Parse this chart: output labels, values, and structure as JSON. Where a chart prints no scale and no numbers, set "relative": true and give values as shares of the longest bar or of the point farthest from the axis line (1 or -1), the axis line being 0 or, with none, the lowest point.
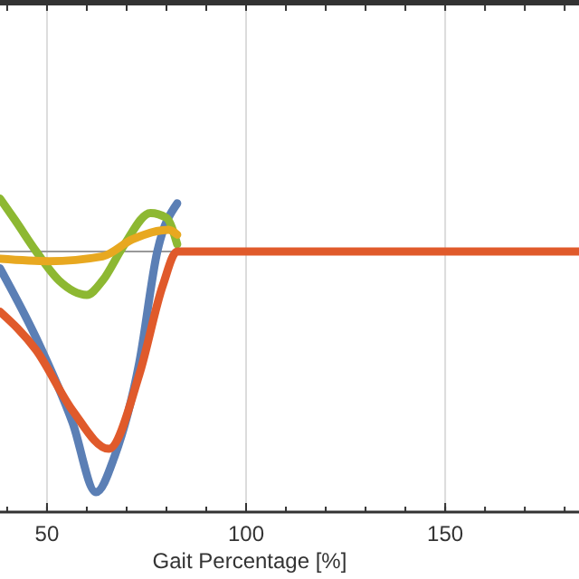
{
  "chart_data": {
    "type": "line",
    "xlabel": "Gait Percentage [%]",
    "relative": true,
    "xlim": [
      38.2,
      183.6
    ],
    "xticks": [
      50,
      100,
      150
    ],
    "grid": "x",
    "line_style": "solid",
    "series": [
      {
        "color": "#5b7fb5",
        "x": [
          38.2,
          47.3,
          56.4,
          62.3,
          67,
          73.2,
          77.7,
          82.7
        ],
        "values": [
          -0.07,
          -0.36,
          -0.71,
          -1,
          -0.85,
          -0.46,
          0,
          0.2
        ]
      },
      {
        "color": "#8db832",
        "x": [
          38.2,
          42,
          47.3,
          53,
          60,
          64,
          69.1,
          76,
          80,
          82.7
        ],
        "values": [
          0.22,
          0.13,
          0,
          -0.12,
          -0.18,
          -0.12,
          0.02,
          0.16,
          0.14,
          0.03
        ]
      },
      {
        "color": "#e8a820",
        "x": [
          38.2,
          50.5,
          64,
          71.4,
          80.5,
          82.7
        ],
        "values": [
          -0.03,
          -0.04,
          -0.02,
          0.05,
          0.09,
          0.07
        ]
      },
      {
        "color": "#e05a2b",
        "x": [
          38.2,
          47.3,
          56.4,
          65.5,
          73.2,
          79.1,
          82.7,
          100,
          150,
          183.6
        ],
        "values": [
          -0.25,
          -0.41,
          -0.66,
          -0.82,
          -0.51,
          -0.14,
          0,
          0,
          0,
          0
        ]
      }
    ]
  }
}
